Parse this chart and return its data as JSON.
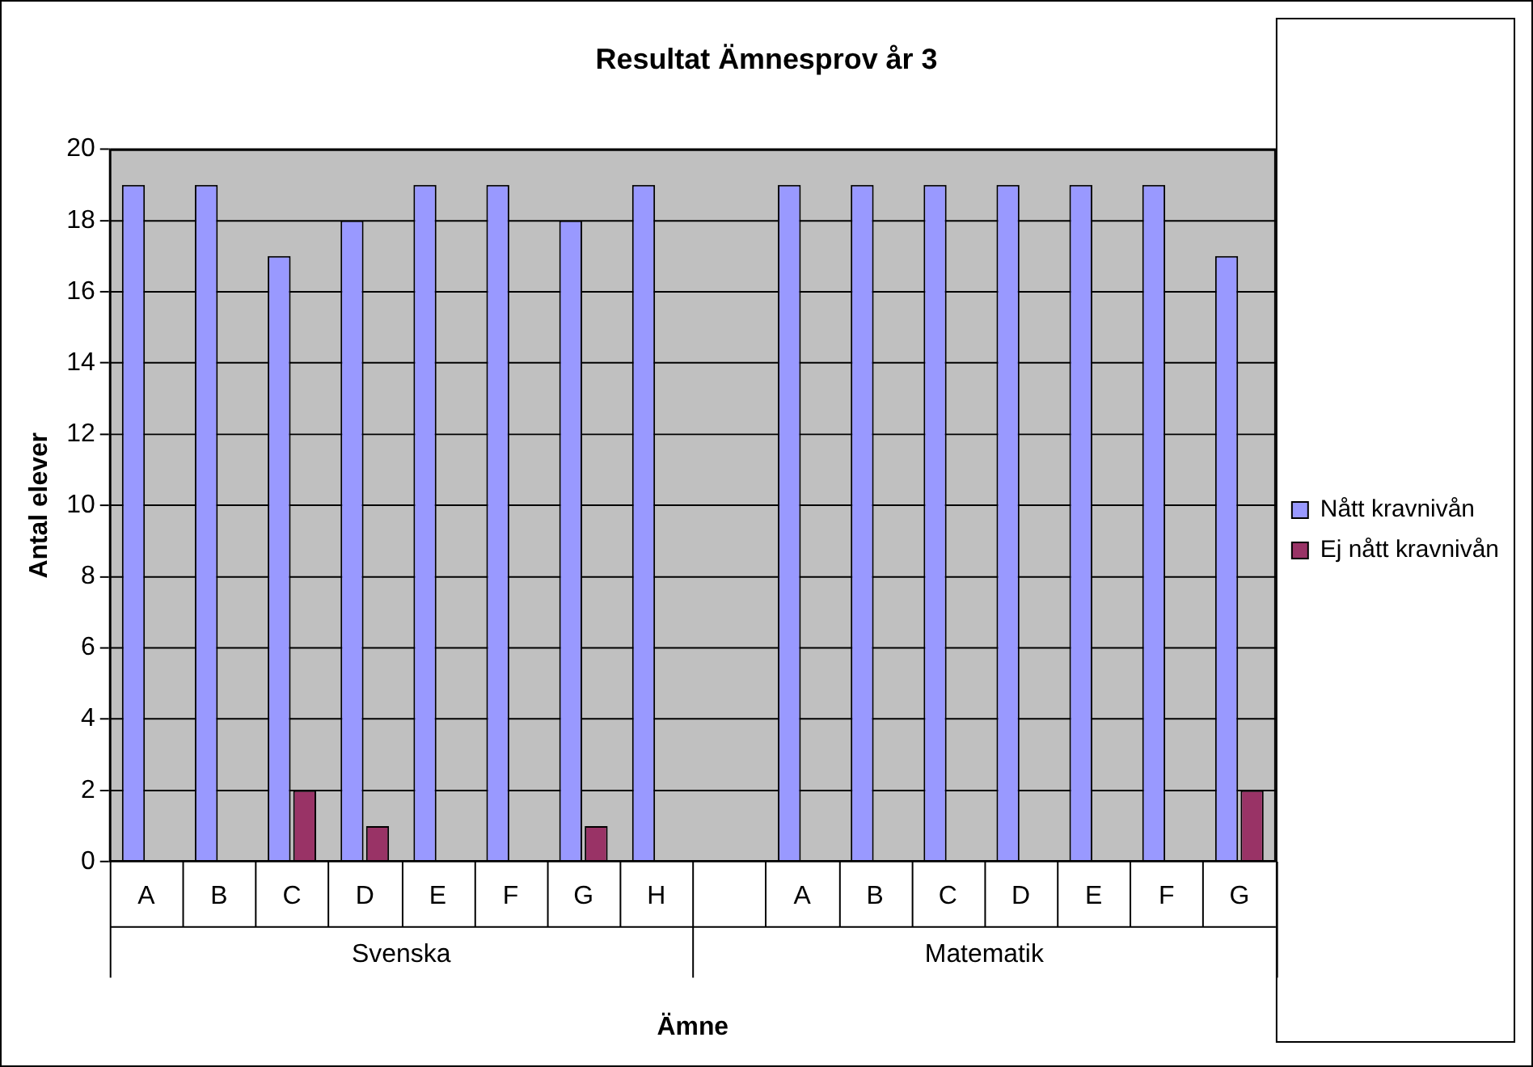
{
  "chart_data": {
    "type": "bar",
    "title": "Resultat Ämnesprov år 3",
    "xlabel": "Ämne",
    "ylabel": "Antal elever",
    "categories": [
      "A",
      "B",
      "C",
      "D",
      "E",
      "F",
      "G",
      "H",
      null,
      "A",
      "B",
      "C",
      "D",
      "E",
      "F",
      "G"
    ],
    "series": [
      {
        "name": "Nått kravnivån",
        "color": "#9999ff",
        "values": [
          19,
          19,
          17,
          18,
          19,
          19,
          18,
          19,
          null,
          19,
          19,
          19,
          19,
          19,
          19,
          17
        ]
      },
      {
        "name": "Ej nått kravnivån",
        "color": "#993366",
        "values": [
          0,
          0,
          2,
          1,
          0,
          0,
          1,
          0,
          null,
          0,
          0,
          0,
          0,
          0,
          0,
          2
        ]
      }
    ],
    "annotations": [
      "Svenska",
      "Matematik"
    ],
    "ylim": [
      0,
      20
    ],
    "yticks": [
      0,
      2,
      4,
      6,
      8,
      10,
      12,
      14,
      16,
      18,
      20
    ],
    "grid": "y",
    "legend": "right"
  }
}
